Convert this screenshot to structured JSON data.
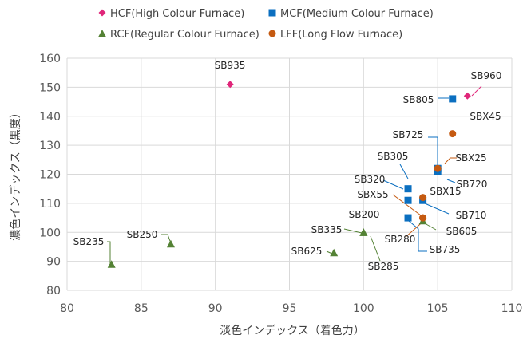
{
  "chart_data": {
    "type": "scatter",
    "xlabel": "淡色インデックス（着色力）",
    "ylabel": "濃色インデックス（黒度）",
    "xlim": [
      80,
      110
    ],
    "ylim": [
      80,
      160
    ],
    "x_ticks": [
      80,
      85,
      90,
      95,
      100,
      105,
      110
    ],
    "y_ticks": [
      80,
      90,
      100,
      110,
      120,
      130,
      140,
      150,
      160
    ],
    "grid": true,
    "legend_position": "top",
    "series": [
      {
        "name": "HCF(High Colour Furnace)",
        "marker": "diamond",
        "color": "#e0267a",
        "points": [
          {
            "label": "SB935",
            "x": 91,
            "y": 151
          },
          {
            "label": "SB960",
            "x": 107,
            "y": 147
          }
        ]
      },
      {
        "name": "MCF(Medium Colour Furnace)",
        "marker": "square",
        "color": "#0b6fc0",
        "points": [
          {
            "label": "SB805",
            "x": 106,
            "y": 146
          },
          {
            "label": "SB725",
            "x": 105,
            "y": 122
          },
          {
            "label": "SB720",
            "x": 105,
            "y": 121
          },
          {
            "label": "SB305",
            "x": 103,
            "y": 115
          },
          {
            "label": "SB320",
            "x": 103,
            "y": 111
          },
          {
            "label": "SB710",
            "x": 104,
            "y": 111
          },
          {
            "label": "SB735",
            "x": 103,
            "y": 105
          }
        ]
      },
      {
        "name": "RCF(Regular Colour Furnace)",
        "marker": "triangle",
        "color": "#548235",
        "points": [
          {
            "label": "SB250",
            "x": 87,
            "y": 96
          },
          {
            "label": "SB235",
            "x": 83,
            "y": 89
          },
          {
            "label": "SB200",
            "x": 100,
            "y": 100
          },
          {
            "label": "SB335",
            "x": 100,
            "y": 100
          },
          {
            "label": "SB285",
            "x": 100,
            "y": 100
          },
          {
            "label": "SB625",
            "x": 98,
            "y": 93
          },
          {
            "label": "SB605",
            "x": 104,
            "y": 104
          }
        ]
      },
      {
        "name": "LFF(Long Flow Furnace)",
        "marker": "circle",
        "color": "#c55a11",
        "points": [
          {
            "label": "SBX45",
            "x": 106,
            "y": 134
          },
          {
            "label": "SBX25",
            "x": 105,
            "y": 122
          },
          {
            "label": "SBX15",
            "x": 104,
            "y": 112
          },
          {
            "label": "SBX55",
            "x": 104,
            "y": 105
          },
          {
            "label": "SB280",
            "x": 104,
            "y": 105
          }
        ]
      }
    ]
  }
}
